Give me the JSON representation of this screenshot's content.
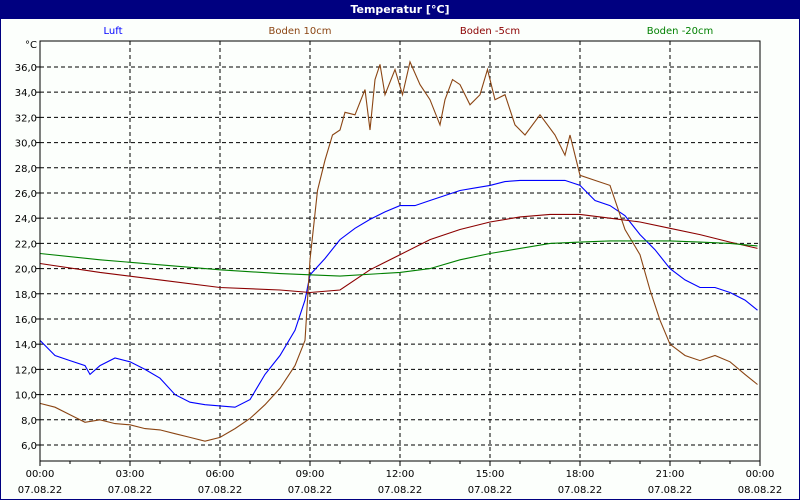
{
  "window": {
    "title": "Temperatur [°C]",
    "title_bar_color": "#000080"
  },
  "chart_data": {
    "type": "line",
    "title": "Temperatur [°C]",
    "ylabel": "°C",
    "xlabel": "",
    "ylim": [
      4.73,
      38.06
    ],
    "xlim": [
      "07.08.22 00:00",
      "08.08.22 00:00"
    ],
    "grid": true,
    "legend_position": "top",
    "y_ticks": [
      "6,0",
      "8,0",
      "10,0",
      "12,0",
      "14,0",
      "16,0",
      "18,0",
      "20,0",
      "22,0",
      "24,0",
      "26,0",
      "28,0",
      "30,0",
      "32,0",
      "34,0",
      "36,0"
    ],
    "y_tick_values": [
      6,
      8,
      10,
      12,
      14,
      16,
      18,
      20,
      22,
      24,
      26,
      28,
      30,
      32,
      34,
      36
    ],
    "x_ticks": [
      {
        "time": "00:00",
        "date": "07.08.22"
      },
      {
        "time": "03:00",
        "date": "07.08.22"
      },
      {
        "time": "06:00",
        "date": "07.08.22"
      },
      {
        "time": "09:00",
        "date": "07.08.22"
      },
      {
        "time": "12:00",
        "date": "07.08.22"
      },
      {
        "time": "15:00",
        "date": "07.08.22"
      },
      {
        "time": "18:00",
        "date": "07.08.22"
      },
      {
        "time": "21:00",
        "date": "07.08.22"
      },
      {
        "time": "00:00",
        "date": "08.08.22"
      }
    ],
    "series": [
      {
        "name": "Luft",
        "color": "#0000ff",
        "points": [
          [
            "00:00",
            14.3
          ],
          [
            "00:30",
            13.1
          ],
          [
            "01:00",
            12.7
          ],
          [
            "01:30",
            12.3
          ],
          [
            "01:40",
            11.6
          ],
          [
            "02:00",
            12.3
          ],
          [
            "02:30",
            12.9
          ],
          [
            "03:00",
            12.6
          ],
          [
            "03:30",
            12.0
          ],
          [
            "04:00",
            11.3
          ],
          [
            "04:30",
            10.0
          ],
          [
            "05:00",
            9.4
          ],
          [
            "05:30",
            9.2
          ],
          [
            "06:00",
            9.1
          ],
          [
            "06:30",
            9.0
          ],
          [
            "07:00",
            9.6
          ],
          [
            "07:30",
            11.6
          ],
          [
            "08:00",
            13.1
          ],
          [
            "08:30",
            15.1
          ],
          [
            "08:50",
            17.5
          ],
          [
            "09:00",
            19.5
          ],
          [
            "09:30",
            20.8
          ],
          [
            "10:00",
            22.3
          ],
          [
            "10:30",
            23.2
          ],
          [
            "11:00",
            23.9
          ],
          [
            "11:30",
            24.5
          ],
          [
            "12:00",
            25.0
          ],
          [
            "12:30",
            25.0
          ],
          [
            "13:00",
            25.4
          ],
          [
            "13:30",
            25.8
          ],
          [
            "14:00",
            26.2
          ],
          [
            "14:30",
            26.4
          ],
          [
            "15:00",
            26.6
          ],
          [
            "15:30",
            26.9
          ],
          [
            "16:00",
            27.0
          ],
          [
            "16:30",
            27.0
          ],
          [
            "17:00",
            27.0
          ],
          [
            "17:30",
            27.0
          ],
          [
            "18:00",
            26.6
          ],
          [
            "18:30",
            25.4
          ],
          [
            "19:00",
            25.0
          ],
          [
            "19:30",
            24.2
          ],
          [
            "20:00",
            22.7
          ],
          [
            "20:30",
            21.5
          ],
          [
            "21:00",
            20.0
          ],
          [
            "21:30",
            19.1
          ],
          [
            "22:00",
            18.5
          ],
          [
            "22:30",
            18.5
          ],
          [
            "23:00",
            18.1
          ],
          [
            "23:30",
            17.5
          ],
          [
            "23:55",
            16.7
          ]
        ]
      },
      {
        "name": "Boden 10cm",
        "color": "#8b4513",
        "points": [
          [
            "00:00",
            9.3
          ],
          [
            "00:30",
            9.0
          ],
          [
            "01:00",
            8.4
          ],
          [
            "01:30",
            7.8
          ],
          [
            "02:00",
            8.0
          ],
          [
            "02:30",
            7.7
          ],
          [
            "03:00",
            7.6
          ],
          [
            "03:30",
            7.3
          ],
          [
            "04:00",
            7.2
          ],
          [
            "04:30",
            6.9
          ],
          [
            "05:00",
            6.6
          ],
          [
            "05:30",
            6.3
          ],
          [
            "06:00",
            6.6
          ],
          [
            "06:30",
            7.3
          ],
          [
            "07:00",
            8.1
          ],
          [
            "07:30",
            9.2
          ],
          [
            "08:00",
            10.5
          ],
          [
            "08:30",
            12.3
          ],
          [
            "08:50",
            14.3
          ],
          [
            "09:00",
            20.7
          ],
          [
            "09:15",
            26.2
          ],
          [
            "09:30",
            28.6
          ],
          [
            "09:45",
            30.6
          ],
          [
            "10:00",
            31.0
          ],
          [
            "10:10",
            32.4
          ],
          [
            "10:30",
            32.2
          ],
          [
            "10:50",
            34.2
          ],
          [
            "11:00",
            31.0
          ],
          [
            "11:10",
            35.0
          ],
          [
            "11:20",
            36.2
          ],
          [
            "11:30",
            33.8
          ],
          [
            "11:50",
            35.8
          ],
          [
            "12:05",
            33.8
          ],
          [
            "12:20",
            36.4
          ],
          [
            "12:40",
            34.6
          ],
          [
            "13:00",
            33.4
          ],
          [
            "13:20",
            31.4
          ],
          [
            "13:30",
            33.4
          ],
          [
            "13:45",
            35.0
          ],
          [
            "14:00",
            34.6
          ],
          [
            "14:20",
            33.0
          ],
          [
            "14:40",
            33.8
          ],
          [
            "14:55",
            35.8
          ],
          [
            "15:10",
            33.4
          ],
          [
            "15:30",
            33.8
          ],
          [
            "15:50",
            31.4
          ],
          [
            "16:10",
            30.6
          ],
          [
            "16:40",
            32.2
          ],
          [
            "17:10",
            30.6
          ],
          [
            "17:30",
            29.0
          ],
          [
            "17:40",
            30.6
          ],
          [
            "18:00",
            27.4
          ],
          [
            "18:30",
            27.0
          ],
          [
            "19:00",
            26.6
          ],
          [
            "19:30",
            23.1
          ],
          [
            "20:00",
            21.1
          ],
          [
            "20:20",
            18.3
          ],
          [
            "20:40",
            15.9
          ],
          [
            "21:00",
            14.0
          ],
          [
            "21:30",
            13.1
          ],
          [
            "22:00",
            12.7
          ],
          [
            "22:30",
            13.1
          ],
          [
            "23:00",
            12.6
          ],
          [
            "23:30",
            11.6
          ],
          [
            "23:55",
            10.8
          ]
        ]
      },
      {
        "name": "Boden -5cm",
        "color": "#8b0000",
        "points": [
          [
            "00:00",
            20.4
          ],
          [
            "02:00",
            19.7
          ],
          [
            "04:00",
            19.1
          ],
          [
            "06:00",
            18.5
          ],
          [
            "08:00",
            18.3
          ],
          [
            "09:00",
            18.1
          ],
          [
            "10:00",
            18.3
          ],
          [
            "11:00",
            19.9
          ],
          [
            "12:00",
            21.1
          ],
          [
            "13:00",
            22.3
          ],
          [
            "14:00",
            23.1
          ],
          [
            "15:00",
            23.7
          ],
          [
            "16:00",
            24.1
          ],
          [
            "17:00",
            24.3
          ],
          [
            "18:00",
            24.3
          ],
          [
            "19:00",
            24.0
          ],
          [
            "20:00",
            23.7
          ],
          [
            "21:00",
            23.2
          ],
          [
            "22:00",
            22.7
          ],
          [
            "23:00",
            22.1
          ],
          [
            "23:55",
            21.6
          ]
        ]
      },
      {
        "name": "Boden -20cm",
        "color": "#008000",
        "points": [
          [
            "00:00",
            21.2
          ],
          [
            "02:00",
            20.7
          ],
          [
            "04:00",
            20.3
          ],
          [
            "06:00",
            19.9
          ],
          [
            "08:00",
            19.6
          ],
          [
            "10:00",
            19.4
          ],
          [
            "12:00",
            19.7
          ],
          [
            "13:00",
            20.0
          ],
          [
            "14:00",
            20.7
          ],
          [
            "15:00",
            21.2
          ],
          [
            "16:00",
            21.6
          ],
          [
            "17:00",
            22.0
          ],
          [
            "18:00",
            22.1
          ],
          [
            "19:00",
            22.2
          ],
          [
            "20:00",
            22.2
          ],
          [
            "21:00",
            22.2
          ],
          [
            "22:00",
            22.1
          ],
          [
            "23:00",
            22.0
          ],
          [
            "23:55",
            21.8
          ]
        ]
      }
    ]
  }
}
